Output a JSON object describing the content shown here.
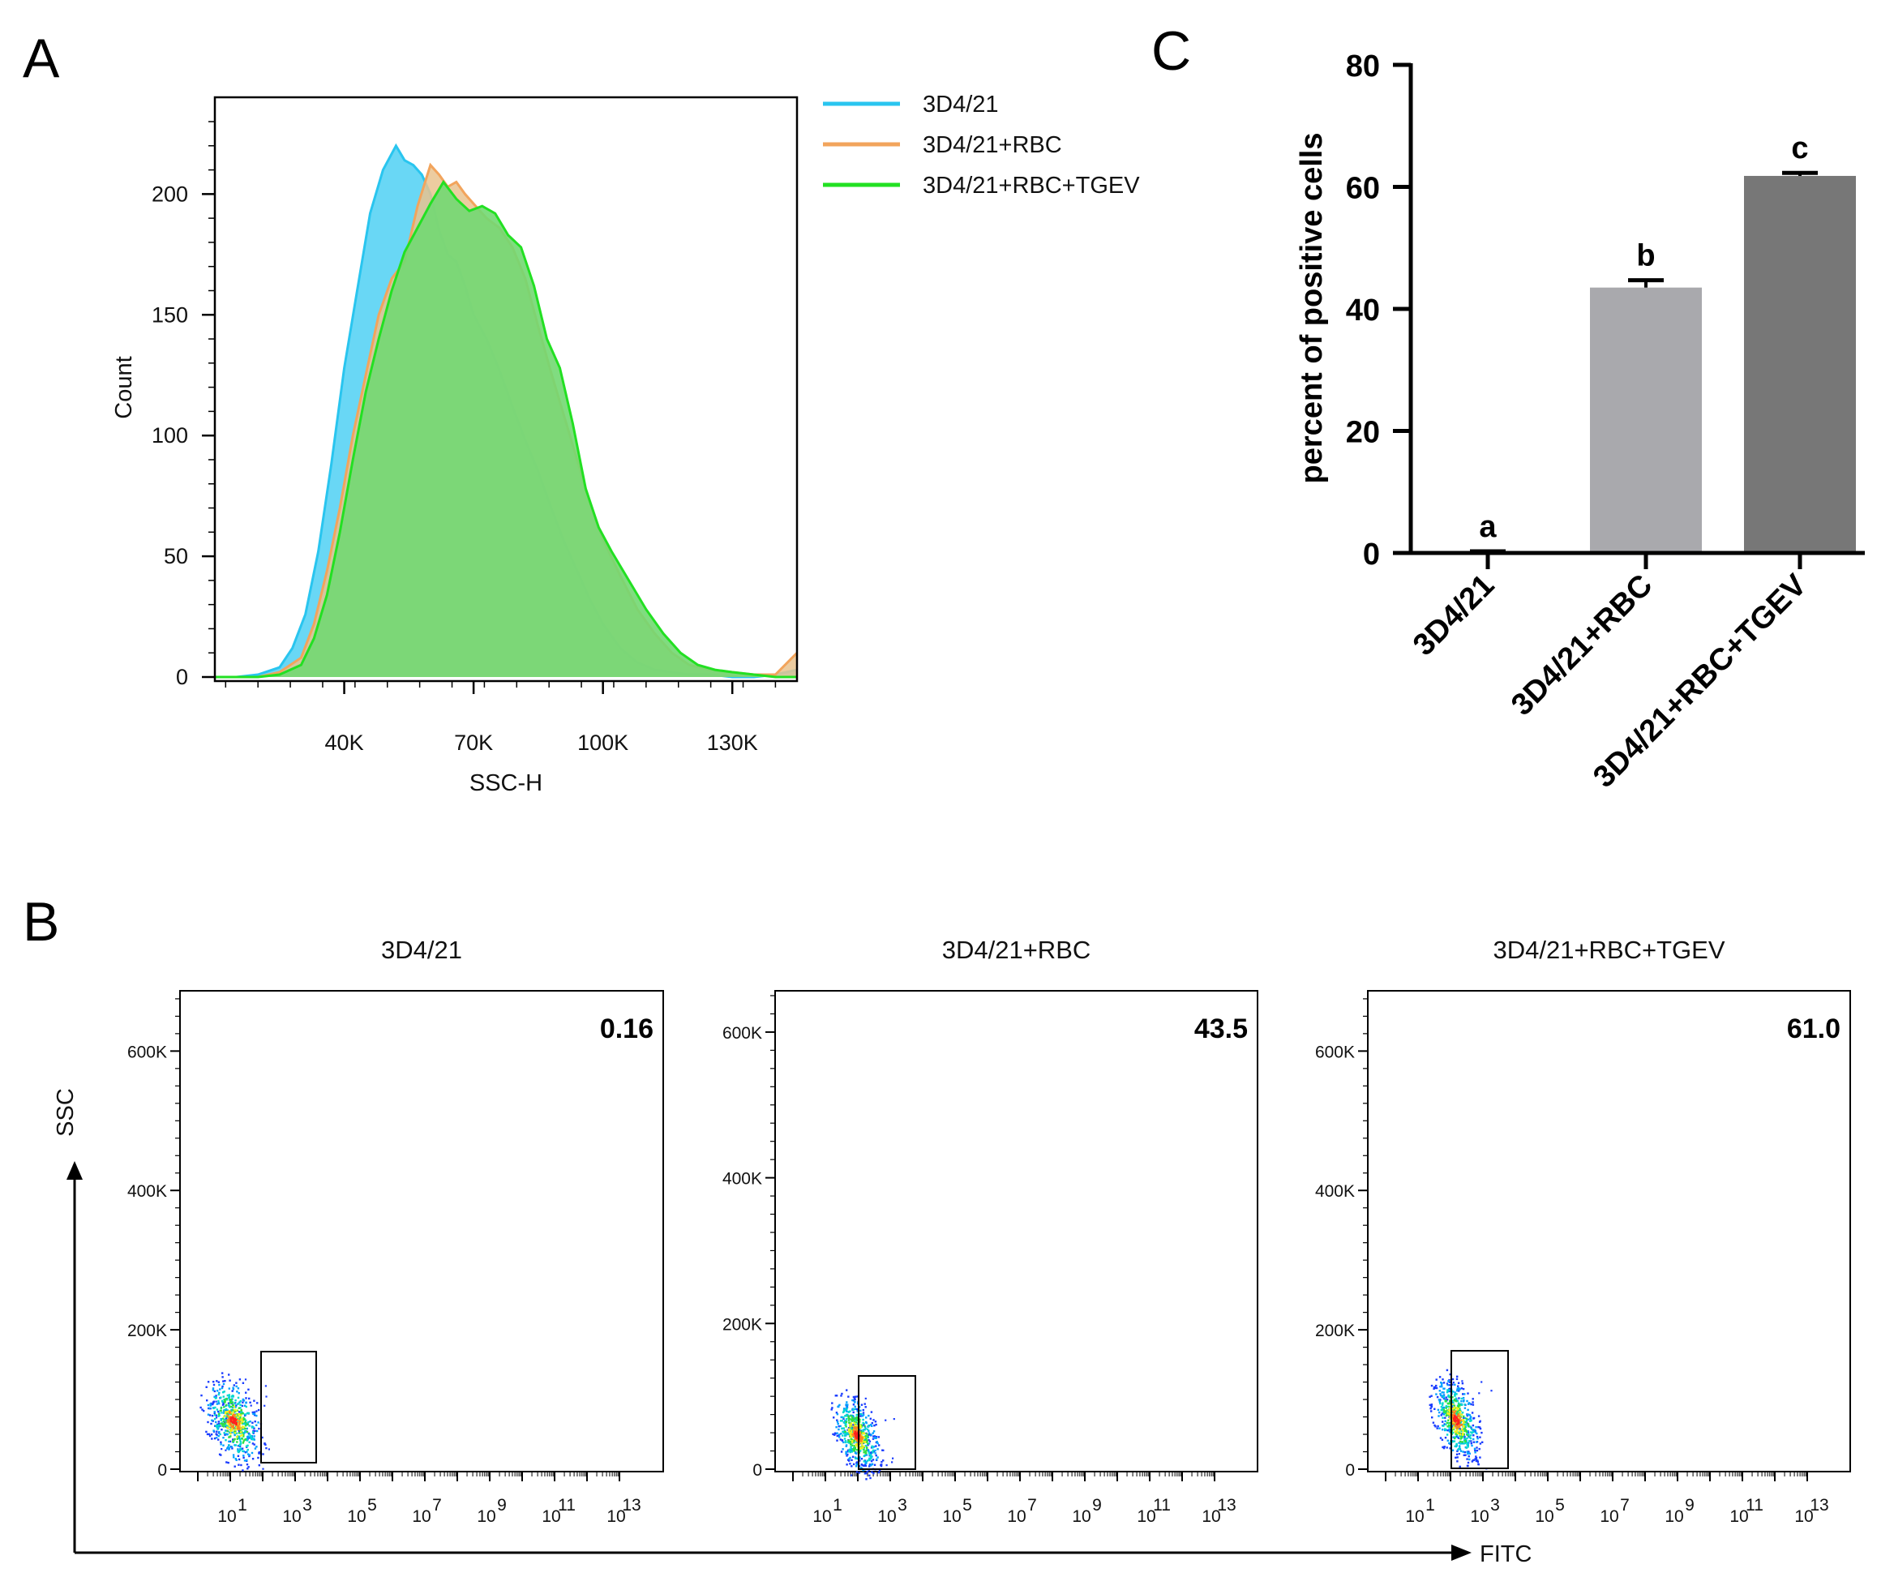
{
  "panels": {
    "a": "A",
    "b": "B",
    "c": "C"
  },
  "chart_data": [
    {
      "id": "A",
      "type": "area",
      "xlabel": "SSC-H",
      "ylabel": "Count",
      "xlim": [
        10000,
        145000
      ],
      "ylim": [
        0,
        230
      ],
      "x_ticks": [
        40000,
        70000,
        100000,
        130000
      ],
      "x_tick_labels": [
        "40K",
        "70K",
        "100K",
        "130K"
      ],
      "y_ticks": [
        0,
        50,
        100,
        150,
        200
      ],
      "y_tick_labels": [
        "0",
        "50",
        "100",
        "150",
        "200"
      ],
      "legend_position": "right",
      "series": [
        {
          "name": "3D4/21",
          "color": "#29c5ef",
          "fill": "#4fd0f3",
          "x": [
            10000,
            15000,
            20000,
            25000,
            28000,
            31000,
            34000,
            37000,
            40000,
            43000,
            46000,
            49000,
            52000,
            54000,
            56000,
            58000,
            60000,
            62000,
            64000,
            66000,
            68000,
            70000,
            73000,
            76000,
            79000,
            82000,
            85000,
            88000,
            91000,
            94000,
            97000,
            100000,
            104000,
            108000,
            112000,
            116000,
            120000,
            125000,
            130000,
            135000,
            140000,
            145000
          ],
          "y": [
            0,
            0,
            1,
            4,
            12,
            26,
            52,
            88,
            128,
            160,
            192,
            210,
            220,
            214,
            212,
            208,
            200,
            185,
            175,
            172,
            162,
            150,
            140,
            127,
            112,
            98,
            85,
            70,
            56,
            44,
            32,
            22,
            12,
            6,
            3,
            2,
            1,
            1,
            0,
            0,
            1,
            3
          ]
        },
        {
          "name": "3D4/21+RBC",
          "color": "#f2a45c",
          "fill": "#e9c38f",
          "x": [
            10000,
            20000,
            25000,
            30000,
            33000,
            36000,
            39000,
            42000,
            45000,
            48000,
            51000,
            54000,
            57000,
            60000,
            62000,
            64000,
            66000,
            68000,
            70000,
            73000,
            76000,
            79000,
            82000,
            85000,
            88000,
            91000,
            94000,
            97000,
            100000,
            104000,
            108000,
            112000,
            116000,
            120000,
            125000,
            130000,
            135000,
            140000,
            145000
          ],
          "y": [
            0,
            0,
            2,
            8,
            22,
            44,
            70,
            100,
            125,
            150,
            165,
            172,
            195,
            212,
            208,
            203,
            205,
            200,
            196,
            190,
            186,
            178,
            165,
            145,
            126,
            108,
            90,
            72,
            57,
            42,
            28,
            18,
            10,
            5,
            3,
            2,
            1,
            1,
            10
          ]
        },
        {
          "name": "3D4/21+RBC+TGEV",
          "color": "#22e022",
          "fill": "#72d872",
          "x": [
            10000,
            20000,
            25000,
            30000,
            33000,
            36000,
            39000,
            42000,
            45000,
            48000,
            51000,
            54000,
            57000,
            60000,
            63000,
            66000,
            69000,
            72000,
            75000,
            78000,
            81000,
            84000,
            87000,
            90000,
            93000,
            96000,
            99000,
            102000,
            106000,
            110000,
            114000,
            118000,
            122000,
            126000,
            130000,
            135000,
            140000,
            145000
          ],
          "y": [
            0,
            0,
            1,
            5,
            16,
            34,
            60,
            90,
            118,
            140,
            160,
            176,
            186,
            196,
            205,
            198,
            193,
            195,
            192,
            183,
            178,
            162,
            140,
            128,
            105,
            78,
            62,
            52,
            40,
            28,
            18,
            10,
            5,
            3,
            2,
            1,
            0,
            0
          ]
        }
      ]
    },
    {
      "id": "C",
      "type": "bar",
      "categories": [
        "3D4/21",
        "3D4/21+RBC",
        "3D4/21+RBC+TGEV"
      ],
      "values": [
        0.16,
        43.5,
        61.8
      ],
      "errors": [
        0.1,
        1.2,
        0.5
      ],
      "significance_labels": [
        "a",
        "b",
        "c"
      ],
      "colors": [
        "#9e9e9e",
        "#a9a9ad",
        "#777777"
      ],
      "xlabel": "",
      "ylabel": "percent of positive cells",
      "ylim": [
        0,
        80
      ],
      "y_ticks": [
        0,
        20,
        40,
        60,
        80
      ],
      "y_tick_labels": [
        "0",
        "20",
        "40",
        "60",
        "80"
      ]
    },
    {
      "id": "B",
      "type": "scatter",
      "xlabel": "FITC",
      "ylabel": "SSC",
      "x_scale": "log",
      "x_tick_labels": [
        {
          "base": "10",
          "exp": "1"
        },
        {
          "base": "10",
          "exp": "3"
        },
        {
          "base": "10",
          "exp": "5"
        },
        {
          "base": "10",
          "exp": "7"
        },
        {
          "base": "10",
          "exp": "9"
        },
        {
          "base": "10",
          "exp": "11"
        },
        {
          "base": "10",
          "exp": "13"
        }
      ],
      "y_tick_labels": [
        "0",
        "200K",
        "400K",
        "600K"
      ],
      "plots": [
        {
          "title": "3D4/21",
          "gate_percent": "0.16",
          "ylim": [
            0,
            690000
          ]
        },
        {
          "title": "3D4/21+RBC",
          "gate_percent": "43.5",
          "ylim": [
            0,
            660000
          ]
        },
        {
          "title": "3D4/21+RBC+TGEV",
          "gate_percent": "61.0",
          "ylim": [
            0,
            690000
          ]
        }
      ]
    }
  ]
}
